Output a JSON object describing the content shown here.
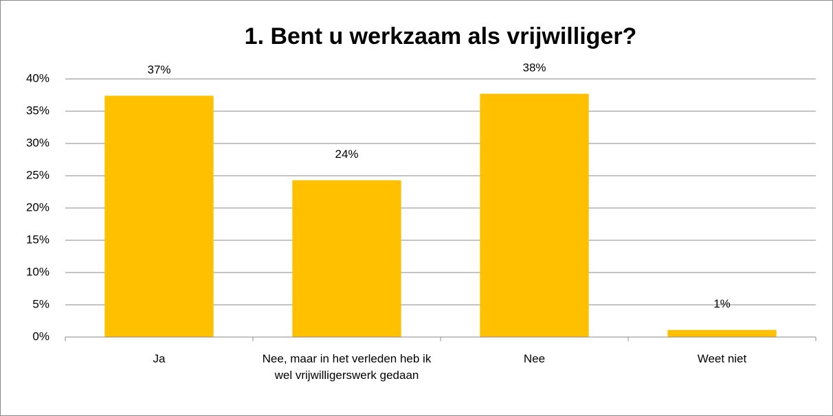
{
  "chart_data": {
    "type": "bar",
    "title": "1. Bent u werkzaam als vrijwilliger?",
    "categories": [
      "Ja",
      "Nee, maar in het verleden heb ik wel vrijwilligerswerk gedaan",
      "Nee",
      "Weet niet"
    ],
    "values": [
      37.4,
      24.3,
      37.7,
      1.1
    ],
    "value_labels": [
      "37%",
      "24%",
      "38%",
      "1%"
    ],
    "color": "#ffc000",
    "ylim": [
      0,
      40
    ],
    "yticks": [
      {
        "value": 0,
        "label": "0%"
      },
      {
        "value": 5,
        "label": "5%"
      },
      {
        "value": 10,
        "label": "10%"
      },
      {
        "value": 15,
        "label": "15%"
      },
      {
        "value": 20,
        "label": "20%"
      },
      {
        "value": 25,
        "label": "25%"
      },
      {
        "value": 30,
        "label": "30%"
      },
      {
        "value": 35,
        "label": "35%"
      },
      {
        "value": 40,
        "label": "40%"
      }
    ],
    "grid": true
  }
}
